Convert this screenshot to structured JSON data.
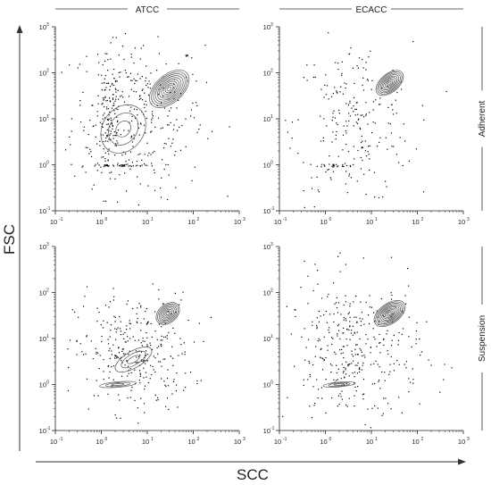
{
  "chart_data": {
    "type": "scatter",
    "x_axis_label": "SCC",
    "y_axis_label": "FSC",
    "column_labels": [
      "ATCC",
      "ECACC"
    ],
    "row_labels": [
      "Adherent",
      "Suspension"
    ],
    "scale": "log",
    "xlim": [
      0.1,
      1000
    ],
    "ylim": [
      0.1,
      1000
    ],
    "tick_labels": [
      "10",
      "10",
      "10",
      "10",
      "10"
    ],
    "tick_exponents": [
      "-1",
      "0",
      "1",
      "2",
      "3"
    ],
    "grid": false,
    "contour_color": "#555555",
    "dot_color": "#000000",
    "panels": [
      {
        "column": "ATCC",
        "row": "Adherent",
        "contours": [
          {
            "center": [
              30,
              45
            ],
            "spread": [
              0.32,
              0.3
            ],
            "tilt": 42,
            "levels": 10
          },
          {
            "center": [
              3,
              6
            ],
            "spread": [
              0.35,
              0.45
            ],
            "tilt": 55,
            "levels": 3
          }
        ],
        "dots": [
          {
            "center": [
              6,
              12
            ],
            "spread": [
              0.45,
              0.55
            ],
            "count": 320
          },
          {
            "center": [
              1.4,
              8
            ],
            "spread": [
              0.1,
              0.45
            ],
            "count": 120
          },
          {
            "center": [
              3,
              1
            ],
            "spread": [
              0.25,
              0.01
            ],
            "count": 40
          }
        ]
      },
      {
        "column": "ECACC",
        "row": "Adherent",
        "contours": [
          {
            "center": [
              25,
              60
            ],
            "spread": [
              0.22,
              0.2
            ],
            "tilt": 40,
            "levels": 9
          }
        ],
        "dots": [
          {
            "center": [
              4,
              8
            ],
            "spread": [
              0.4,
              0.55
            ],
            "count": 230
          },
          {
            "center": [
              1.5,
              1
            ],
            "spread": [
              0.12,
              0.01
            ],
            "count": 25
          }
        ]
      },
      {
        "column": "ATCC",
        "row": "Suspension",
        "contours": [
          {
            "center": [
              28,
              35
            ],
            "spread": [
              0.18,
              0.2
            ],
            "tilt": 40,
            "levels": 8
          },
          {
            "center": [
              2.3,
              1
            ],
            "spread": [
              0.25,
              0.06
            ],
            "tilt": 5,
            "levels": 3
          },
          {
            "center": [
              5,
              3.5
            ],
            "spread": [
              0.28,
              0.18
            ],
            "tilt": 30,
            "levels": 3
          }
        ],
        "dots": [
          {
            "center": [
              5,
              5
            ],
            "spread": [
              0.4,
              0.4
            ],
            "count": 320
          }
        ]
      },
      {
        "column": "ECACC",
        "row": "Suspension",
        "contours": [
          {
            "center": [
              25,
              35
            ],
            "spread": [
              0.24,
              0.22
            ],
            "tilt": 35,
            "levels": 10
          },
          {
            "center": [
              2,
              1
            ],
            "spread": [
              0.22,
              0.05
            ],
            "tilt": 5,
            "levels": 3
          }
        ],
        "dots": [
          {
            "center": [
              4,
              5
            ],
            "spread": [
              0.45,
              0.5
            ],
            "count": 380
          }
        ]
      }
    ]
  }
}
